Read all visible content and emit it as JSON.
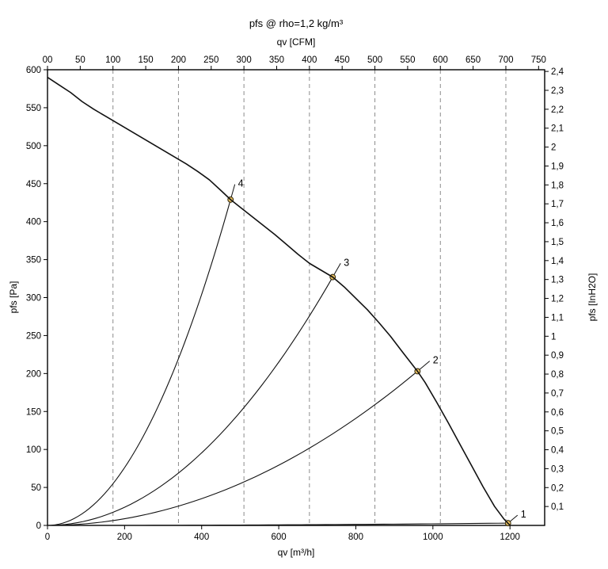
{
  "chart": {
    "title": "pfs @ rho=1,2 kg/m³",
    "top_axis_label": "qv [CFM]",
    "bottom_axis_label": "qv [m³/h]",
    "left_axis_label": "pfs [Pa]",
    "right_axis_label": "pfs [InH2O]"
  },
  "chart_data": {
    "type": "line",
    "title": "pfs @ rho=1,2 kg/m³",
    "legend": "off",
    "grid": "vertical dashed only",
    "axes": {
      "bottom": {
        "label": "qv [m³/h]",
        "range": [
          0,
          1290
        ],
        "ticks": [
          0,
          200,
          400,
          600,
          800,
          1000,
          1200
        ]
      },
      "top": {
        "label": "qv [CFM]",
        "m3h_per_cfm": 1.699,
        "ticks": [
          0,
          50,
          100,
          150,
          200,
          250,
          300,
          350,
          400,
          450,
          500,
          550,
          600,
          650,
          700,
          750
        ],
        "tick_labels": [
          "00",
          "50",
          "100",
          "150",
          "200",
          "250",
          "300",
          "350",
          "400",
          "450",
          "500",
          "550",
          "600",
          "650",
          "700",
          "750"
        ]
      },
      "left": {
        "label": "pfs [Pa]",
        "range": [
          0,
          600
        ],
        "ticks": [
          0,
          50,
          100,
          150,
          200,
          250,
          300,
          350,
          400,
          450,
          500,
          550,
          600
        ]
      },
      "right": {
        "label": "pfs [InH2O]",
        "pa_per_inh2o": 249.08,
        "ticks": [
          0.1,
          0.2,
          0.3,
          0.4,
          0.5,
          0.6,
          0.7,
          0.8,
          0.9,
          1.0,
          1.1,
          1.2,
          1.3,
          1.4,
          1.5,
          1.6,
          1.7,
          1.8,
          1.9,
          2.0,
          2.1,
          2.2,
          2.3,
          2.4
        ],
        "tick_labels": [
          "0,1",
          "0,2",
          "0,3",
          "0,4",
          "0,5",
          "0,6",
          "0,7",
          "0,8",
          "0,9",
          "1",
          "1,1",
          "1,2",
          "1,3",
          "1,4",
          "1,5",
          "1,6",
          "1,7",
          "1,8",
          "1,9",
          "2",
          "2,1",
          "2,2",
          "2,3",
          "2,4"
        ]
      }
    },
    "gridlines": {
      "vertical_cfm": [
        100,
        200,
        300,
        400,
        500,
        600,
        700
      ],
      "style": "dashed"
    },
    "fan_curve": {
      "name": "fan-pressure-curve",
      "points_m3h_pa": [
        [
          0,
          590
        ],
        [
          30,
          580
        ],
        [
          60,
          570
        ],
        [
          90,
          558
        ],
        [
          120,
          548
        ],
        [
          150,
          539
        ],
        [
          180,
          530
        ],
        [
          210,
          521
        ],
        [
          240,
          512
        ],
        [
          270,
          503
        ],
        [
          300,
          494
        ],
        [
          330,
          485
        ],
        [
          360,
          476
        ],
        [
          390,
          466
        ],
        [
          420,
          455
        ],
        [
          450,
          441
        ],
        [
          475,
          429
        ],
        [
          500,
          419
        ],
        [
          530,
          407
        ],
        [
          560,
          395
        ],
        [
          590,
          383
        ],
        [
          620,
          370
        ],
        [
          650,
          357
        ],
        [
          680,
          345
        ],
        [
          710,
          336
        ],
        [
          740,
          327
        ],
        [
          770,
          314
        ],
        [
          800,
          299
        ],
        [
          830,
          284
        ],
        [
          860,
          267
        ],
        [
          890,
          249
        ],
        [
          920,
          229
        ],
        [
          940,
          216
        ],
        [
          960,
          203
        ],
        [
          980,
          188
        ],
        [
          1010,
          162
        ],
        [
          1040,
          135
        ],
        [
          1070,
          107
        ],
        [
          1100,
          79
        ],
        [
          1130,
          51
        ],
        [
          1160,
          25
        ],
        [
          1185,
          8
        ],
        [
          1200,
          0
        ]
      ]
    },
    "system_curves_rule": "quadratic p = k*q^2 through origin and each operating point",
    "operating_points": [
      {
        "label": "1",
        "q_m3h": 1195,
        "p_pa": 3
      },
      {
        "label": "2",
        "q_m3h": 960,
        "p_pa": 203
      },
      {
        "label": "3",
        "q_m3h": 740,
        "p_pa": 327
      },
      {
        "label": "4",
        "q_m3h": 475,
        "p_pa": 429
      }
    ],
    "colors": {
      "curve": "#111111",
      "grid": "#8c8c8c",
      "frame": "#000000",
      "tick": "#000000",
      "marker_fill": "#e8c061",
      "marker_stroke": "#3a2f10"
    }
  }
}
